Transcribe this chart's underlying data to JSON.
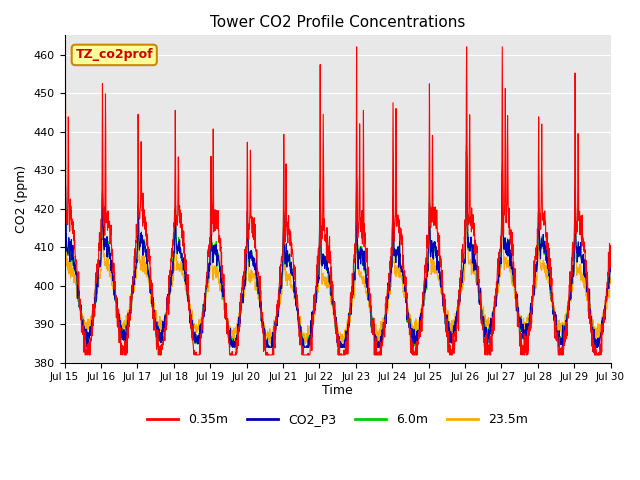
{
  "title": "Tower CO2 Profile Concentrations",
  "xlabel": "Time",
  "ylabel": "CO2 (ppm)",
  "ylim": [
    380,
    465
  ],
  "series_labels": [
    "0.35m",
    "CO2_P3",
    "6.0m",
    "23.5m"
  ],
  "series_colors": [
    "#ff0000",
    "#0000bb",
    "#00cc00",
    "#ffaa00"
  ],
  "annotation_text": "TZ_co2prof",
  "annotation_bg": "#ffff99",
  "annotation_edge": "#cc8800",
  "yticks": [
    380,
    390,
    400,
    410,
    420,
    430,
    440,
    450,
    460
  ],
  "xtick_labels": [
    "Jul 15",
    "Jul 16",
    "Jul 17",
    "Jul 18",
    "Jul 19",
    "Jul 20",
    "Jul 21",
    "Jul 22",
    "Jul 23",
    "Jul 24",
    "Jul 25",
    "Jul 26",
    "Jul 27",
    "Jul 28",
    "Jul 29",
    "Jul 30"
  ],
  "bg_color": "#e8e8e8",
  "fig_bg": "#ffffff"
}
